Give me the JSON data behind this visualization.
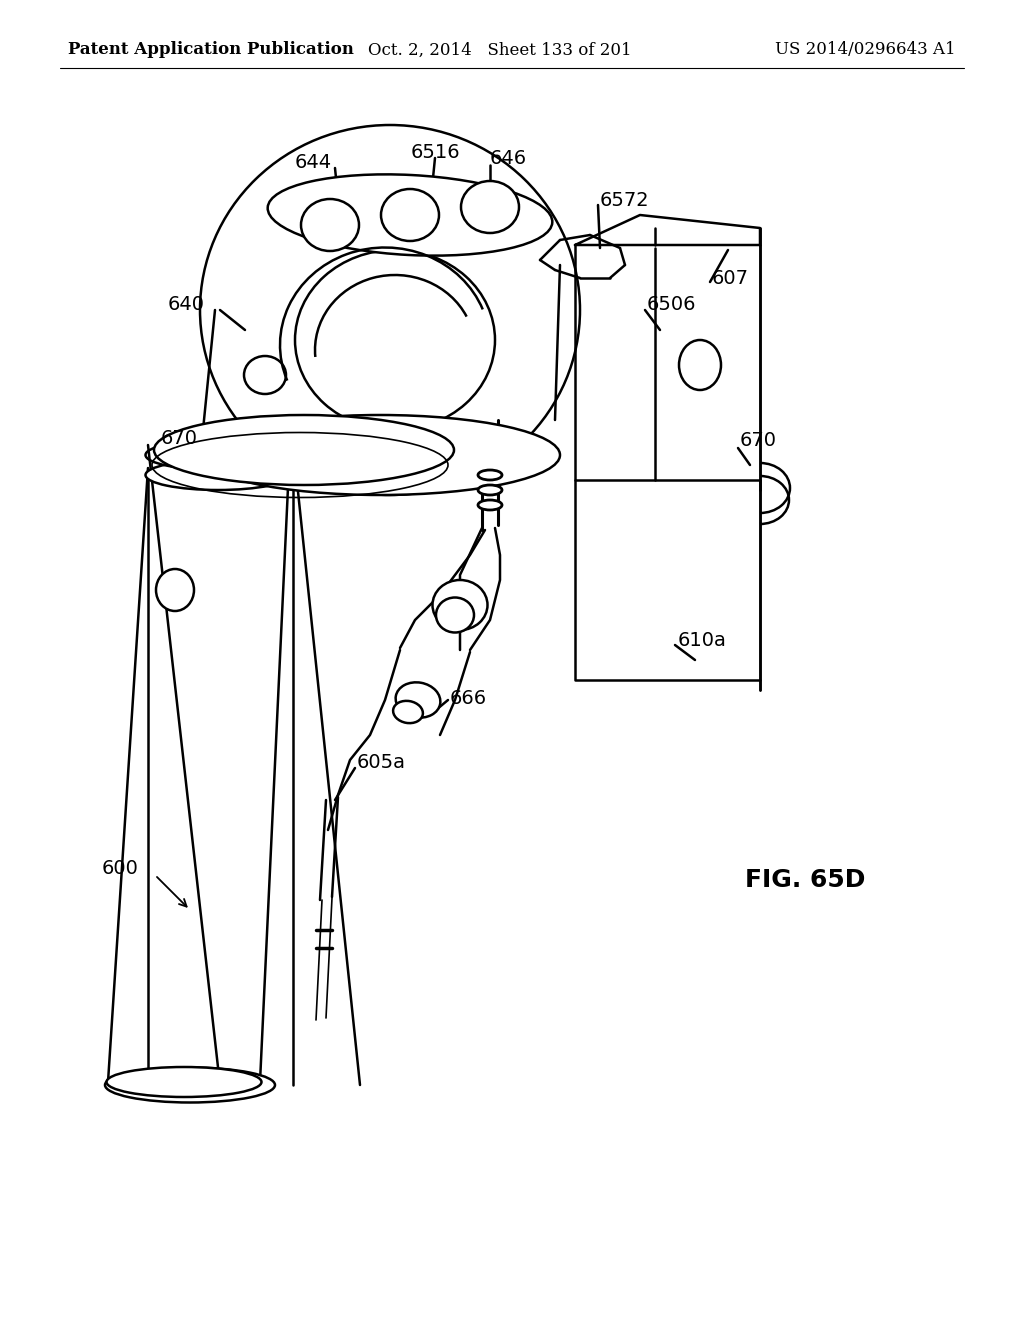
{
  "background_color": "#ffffff",
  "header_left": "Patent Application Publication",
  "header_center": "Oct. 2, 2014   Sheet 133 of 201",
  "header_right": "US 2014/0296643 A1",
  "figure_label": "FIG. 65D",
  "text_color": "#000000",
  "line_color": "#000000",
  "header_fontsize": 12,
  "label_fontsize": 14,
  "fig_label_fontsize": 18
}
